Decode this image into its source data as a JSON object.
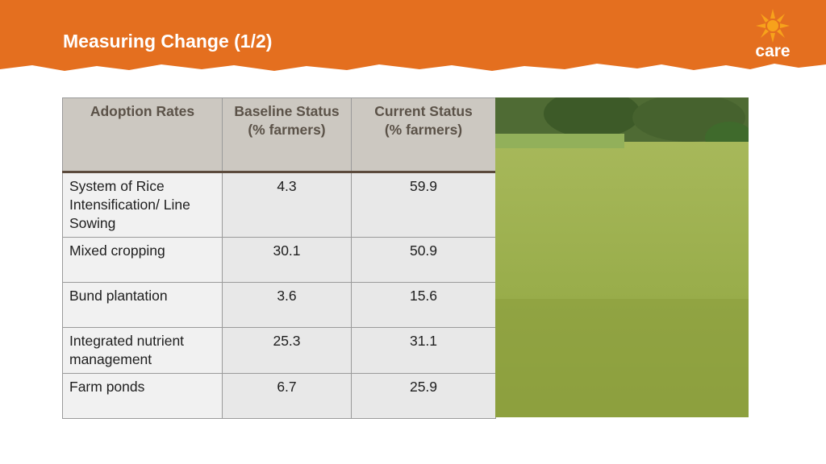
{
  "header": {
    "title": "Measuring Change (1/2)",
    "logo": "care"
  },
  "table": {
    "columns": [
      "Adoption Rates",
      "Baseline Status\n(% farmers)",
      "Current Status\n(% farmers)"
    ],
    "rows": [
      [
        "System of Rice Intensification/ Line Sowing",
        "4.3",
        "59.9"
      ],
      [
        "Mixed cropping",
        "30.1",
        "50.9"
      ],
      [
        "Bund plantation",
        "3.6",
        "15.6"
      ],
      [
        "Integrated nutrient management",
        "25.3",
        "31.1"
      ],
      [
        "Farm ponds",
        "6.7",
        "25.9"
      ]
    ]
  }
}
